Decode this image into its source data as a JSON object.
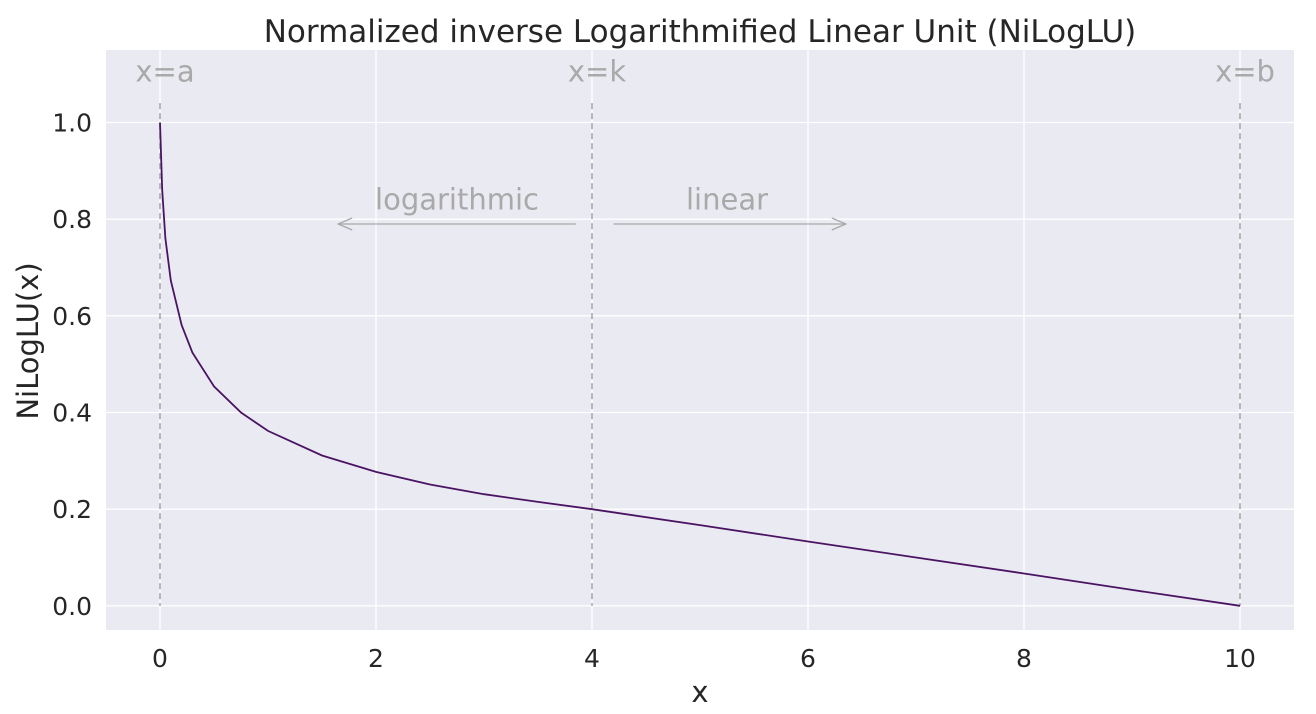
{
  "chart_data": {
    "type": "line",
    "title": "Normalized inverse Logarithmified Linear Unit (NiLogLU)",
    "xlabel": "x",
    "ylabel": "NiLogLU(x)",
    "xlim": [
      -0.5,
      10.5
    ],
    "ylim": [
      -0.05,
      1.15
    ],
    "xticks": [
      0,
      2,
      4,
      6,
      8,
      10
    ],
    "xtick_labels": [
      "0",
      "2",
      "4",
      "6",
      "8",
      "10"
    ],
    "yticks": [
      0.0,
      0.2,
      0.4,
      0.6,
      0.8,
      1.0
    ],
    "ytick_labels": [
      "0.0",
      "0.2",
      "0.4",
      "0.6",
      "0.8",
      "1.0"
    ],
    "grid": true,
    "background": "#eaeaf2",
    "series": [
      {
        "color": "#4a1463",
        "x": [
          0,
          0.02,
          0.05,
          0.1,
          0.2,
          0.3,
          0.5,
          0.75,
          1,
          1.5,
          2,
          2.5,
          3,
          3.5,
          4,
          5,
          6,
          7,
          8,
          9,
          10
        ],
        "y": [
          1.0,
          0.86,
          0.76,
          0.673,
          0.581,
          0.524,
          0.454,
          0.4,
          0.362,
          0.311,
          0.277,
          0.251,
          0.231,
          0.215,
          0.2,
          0.167,
          0.133,
          0.1,
          0.067,
          0.033,
          0.0
        ]
      }
    ],
    "vlines": [
      {
        "x": 0,
        "label": "x=a"
      },
      {
        "x": 4,
        "label": "x=k"
      },
      {
        "x": 10,
        "label": "x=b"
      }
    ],
    "annotations": [
      {
        "text": "logarithmic",
        "x": 2.75,
        "y": 0.82,
        "arrow_from": 3.85,
        "arrow_to": 1.65,
        "arrow_y": 0.79
      },
      {
        "text": "linear",
        "x": 5.25,
        "y": 0.82,
        "arrow_from": 4.2,
        "arrow_to": 6.35,
        "arrow_y": 0.79
      }
    ],
    "annotation_color": "#a9a9a9"
  }
}
